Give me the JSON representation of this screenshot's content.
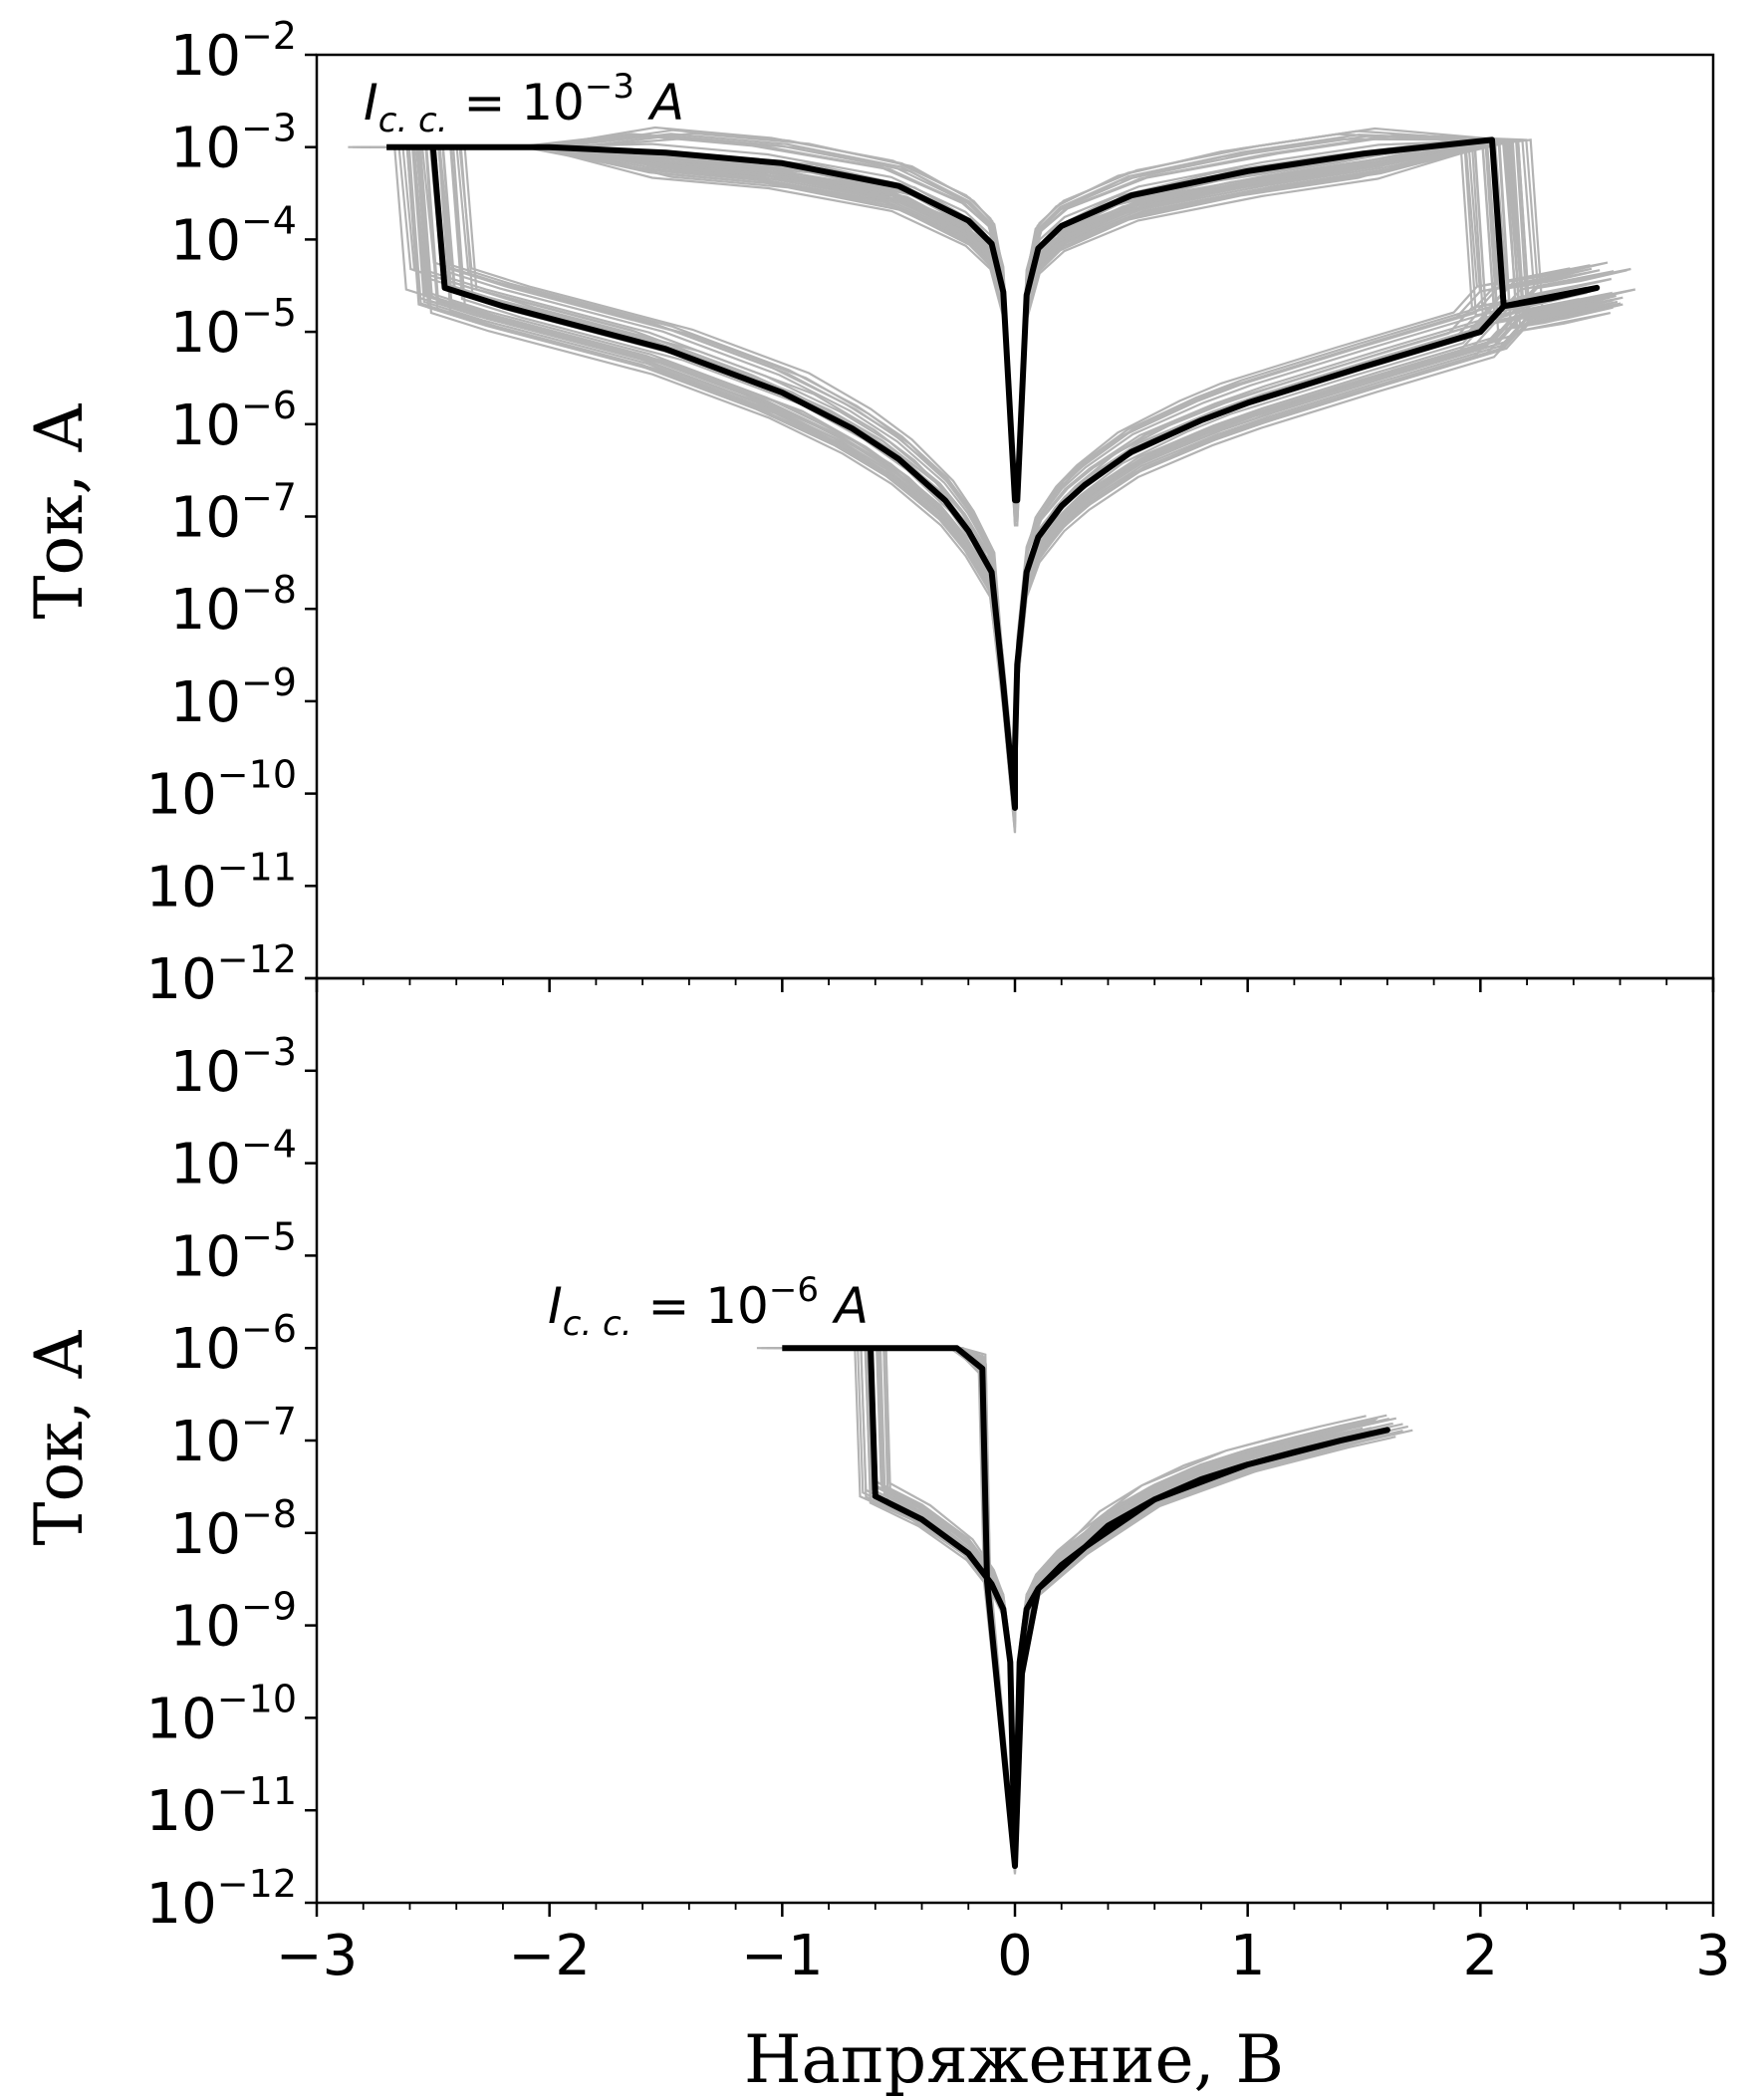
{
  "chart_data": [
    {
      "type": "line",
      "panel": "top",
      "title": "",
      "xlabel": "",
      "ylabel": "Ток, А",
      "xlim": [
        -3,
        3
      ],
      "ylim": [
        1e-12,
        0.01
      ],
      "y_scale": "log",
      "x_ticks": [
        -3,
        -2,
        -1,
        0,
        1,
        2,
        3
      ],
      "x_tick_labels": [
        "",
        "",
        "",
        "",
        "",
        "",
        ""
      ],
      "y_ticks": [
        {
          "base": "10",
          "exp": "−12"
        },
        {
          "base": "10",
          "exp": "−11"
        },
        {
          "base": "10",
          "exp": "−10"
        },
        {
          "base": "10",
          "exp": "−9"
        },
        {
          "base": "10",
          "exp": "−8"
        },
        {
          "base": "10",
          "exp": "−7"
        },
        {
          "base": "10",
          "exp": "−6"
        },
        {
          "base": "10",
          "exp": "−5"
        },
        {
          "base": "10",
          "exp": "−4"
        },
        {
          "base": "10",
          "exp": "−3"
        },
        {
          "base": "10",
          "exp": "−2"
        }
      ],
      "annotation": {
        "prefix": "I",
        "sub": "c. c.",
        "eq": " = 10",
        "exp": "−3",
        "unit": " A"
      },
      "compliance_current": 0.001,
      "series": [
        {
          "role": "representative",
          "color": "#000000",
          "points": [
            [
              -2.7,
              0.001
            ],
            [
              -2.5,
              0.001
            ],
            [
              -2.45,
              3e-05
            ],
            [
              -2.2,
              1.9e-05
            ],
            [
              -2.0,
              1.4e-05
            ],
            [
              -1.5,
              6.5e-06
            ],
            [
              -1.0,
              2.2e-06
            ],
            [
              -0.7,
              9e-07
            ],
            [
              -0.5,
              4.2e-07
            ],
            [
              -0.3,
              1.5e-07
            ],
            [
              -0.2,
              7e-08
            ],
            [
              -0.1,
              2.5e-08
            ],
            [
              -0.05,
              1.5e-09
            ],
            [
              0.0,
              7e-11
            ],
            [
              0.0,
              3e-10
            ],
            [
              0.01,
              2.5e-09
            ],
            [
              0.05,
              2.5e-08
            ],
            [
              0.1,
              6e-08
            ],
            [
              0.2,
              1.3e-07
            ],
            [
              0.3,
              2.2e-07
            ],
            [
              0.5,
              5e-07
            ],
            [
              0.8,
              1.1e-06
            ],
            [
              1.0,
              1.7e-06
            ],
            [
              1.5,
              4.2e-06
            ],
            [
              2.0,
              1e-05
            ],
            [
              2.1,
              1.9e-05
            ],
            [
              2.3,
              2.3e-05
            ],
            [
              2.5,
              3e-05
            ],
            [
              2.1,
              1.9e-05
            ],
            [
              2.05,
              0.0012
            ],
            [
              1.5,
              0.00085
            ],
            [
              1.0,
              0.00055
            ],
            [
              0.5,
              0.0003
            ],
            [
              0.2,
              0.00014
            ],
            [
              0.1,
              8e-05
            ],
            [
              0.05,
              2.5e-05
            ],
            [
              0.01,
              1.5e-07
            ],
            [
              0.0,
              1.5e-07
            ],
            [
              -0.05,
              2.7e-05
            ],
            [
              -0.1,
              9e-05
            ],
            [
              -0.2,
              0.00016
            ],
            [
              -0.5,
              0.00038
            ],
            [
              -1.0,
              0.00067
            ],
            [
              -1.5,
              0.00087
            ],
            [
              -2.0,
              0.001
            ],
            [
              -2.7,
              0.001
            ]
          ]
        }
      ]
    },
    {
      "type": "line",
      "panel": "bottom",
      "title": "",
      "xlabel": "Напряжение, В",
      "ylabel": "Ток, А",
      "xlim": [
        -3,
        3
      ],
      "ylim": [
        1e-12,
        0.01
      ],
      "y_scale": "log",
      "x_ticks": [
        -3,
        -2,
        -1,
        0,
        1,
        2,
        3
      ],
      "x_tick_labels": [
        "−3",
        "−2",
        "−1",
        "0",
        "1",
        "2",
        "3"
      ],
      "y_ticks": [
        {
          "base": "10",
          "exp": "−12"
        },
        {
          "base": "10",
          "exp": "−11"
        },
        {
          "base": "10",
          "exp": "−10"
        },
        {
          "base": "10",
          "exp": "−9"
        },
        {
          "base": "10",
          "exp": "−8"
        },
        {
          "base": "10",
          "exp": "−7"
        },
        {
          "base": "10",
          "exp": "−6"
        },
        {
          "base": "10",
          "exp": "−5"
        },
        {
          "base": "10",
          "exp": "−4"
        },
        {
          "base": "10",
          "exp": "−3"
        }
      ],
      "annotation": {
        "prefix": "I",
        "sub": "c. c.",
        "eq": " = 10",
        "exp": "−6",
        "unit": " A"
      },
      "compliance_current": 1e-06,
      "series": [
        {
          "role": "representative",
          "color": "#000000",
          "points": [
            [
              -1.0,
              1e-06
            ],
            [
              -0.62,
              1e-06
            ],
            [
              -0.6,
              2.5e-08
            ],
            [
              -0.4,
              1.4e-08
            ],
            [
              -0.2,
              6e-09
            ],
            [
              -0.1,
              2.8e-09
            ],
            [
              -0.05,
              1.5e-09
            ],
            [
              -0.02,
              4e-10
            ],
            [
              0.0,
              2.5e-12
            ],
            [
              0.02,
              4e-10
            ],
            [
              0.05,
              1.5e-09
            ],
            [
              0.1,
              2.5e-09
            ],
            [
              0.2,
              4.5e-09
            ],
            [
              0.3,
              7e-09
            ],
            [
              0.4,
              1.2e-08
            ],
            [
              0.6,
              2.3e-08
            ],
            [
              0.8,
              3.8e-08
            ],
            [
              1.0,
              5.5e-08
            ],
            [
              1.2,
              7.5e-08
            ],
            [
              1.4,
              1e-07
            ],
            [
              1.6,
              1.3e-07
            ],
            [
              1.4,
              1e-07
            ],
            [
              1.0,
              5.5e-08
            ],
            [
              0.6,
              2.3e-08
            ],
            [
              0.3,
              7e-09
            ],
            [
              0.1,
              2.5e-09
            ],
            [
              0.03,
              3e-10
            ],
            [
              0.0,
              2.5e-12
            ],
            [
              -0.12,
              3e-09
            ],
            [
              -0.14,
              6e-07
            ],
            [
              -0.25,
              1e-06
            ],
            [
              -1.0,
              1e-06
            ]
          ]
        }
      ]
    }
  ]
}
